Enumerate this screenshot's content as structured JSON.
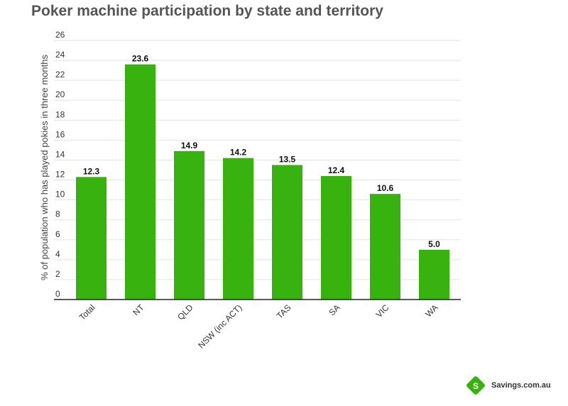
{
  "chart_data": {
    "type": "bar",
    "title": "Poker machine participation by state and territory",
    "xlabel": "",
    "ylabel": "% of population who has played pokies in three months",
    "categories": [
      "Total",
      "NT",
      "QLD",
      "NSW (inc ACT)",
      "TAS",
      "SA",
      "VIC",
      "WA"
    ],
    "values": [
      12.3,
      23.6,
      14.9,
      14.2,
      13.5,
      12.4,
      10.6,
      5.0
    ],
    "data_labels": [
      "12.3",
      "23.6",
      "14.9",
      "14.2",
      "13.5",
      "12.4",
      "10.6",
      "5.0"
    ],
    "ylim": [
      0,
      26
    ],
    "yticks": [
      "0",
      "2",
      "4",
      "6",
      "8",
      "10",
      "12",
      "14",
      "16",
      "18",
      "20",
      "22",
      "24",
      "26"
    ],
    "grid": true,
    "bar_color": "#38b20f"
  },
  "brand": {
    "name": "Savings.com.au",
    "logo_letter": "S",
    "logo_color": "#38b20f"
  }
}
